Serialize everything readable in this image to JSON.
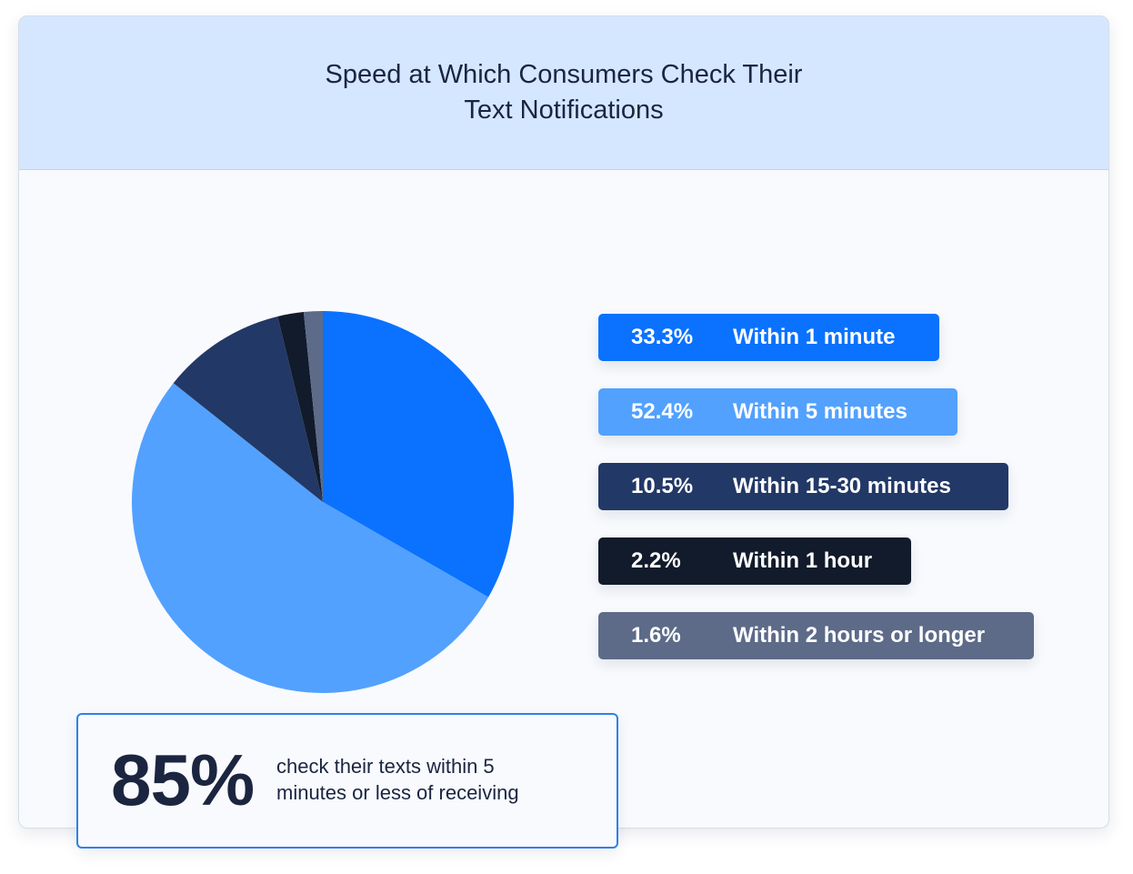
{
  "title": "Speed at Which Consumers Check Their Text Notifications",
  "chart_data": {
    "type": "pie",
    "title": "Speed at Which Consumers Check Their Text Notifications",
    "slices": [
      {
        "label": "Within 1 minute",
        "value": 33.3,
        "display": "33.3%",
        "color": "#0a72ff"
      },
      {
        "label": "Within 5 minutes",
        "value": 52.4,
        "display": "52.4%",
        "color": "#52a1ff"
      },
      {
        "label": "Within 15-30 minutes",
        "value": 10.5,
        "display": "10.5%",
        "color": "#223866"
      },
      {
        "label": "Within 1 hour",
        "value": 2.2,
        "display": "2.2%",
        "color": "#111b2b"
      },
      {
        "label": "Within 2 hours or longer",
        "value": 1.6,
        "display": "1.6%",
        "color": "#5d6b89"
      }
    ],
    "legend_placement": "right"
  },
  "stat": {
    "value": "85%",
    "description": "check their texts within 5 minutes or less of receiving"
  }
}
